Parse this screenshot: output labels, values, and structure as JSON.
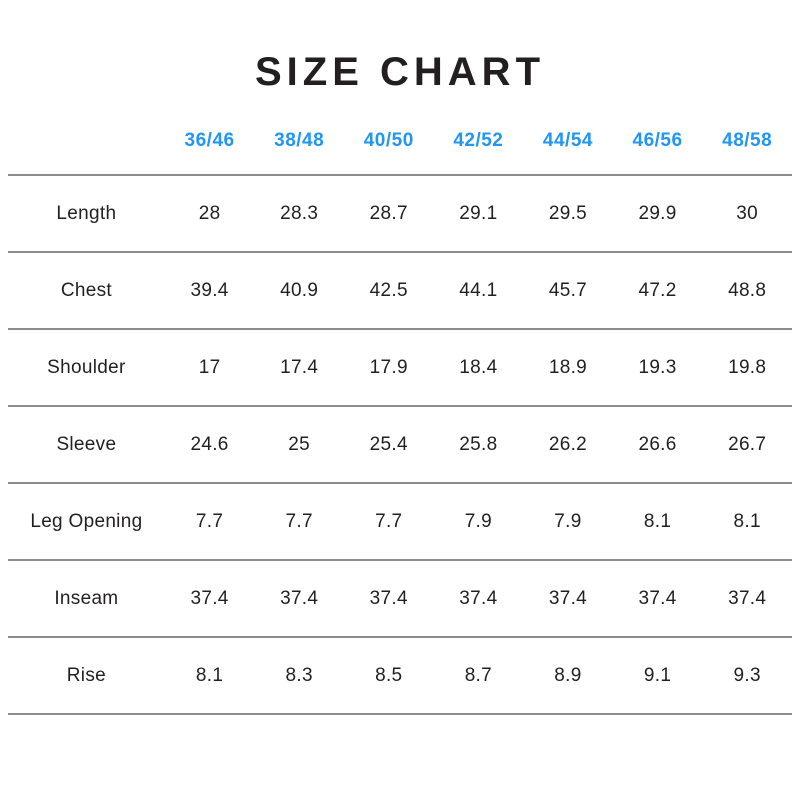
{
  "page": {
    "title": "SIZE CHART"
  },
  "colors": {
    "accent_blue": "#2196f3",
    "text_dark": "#231f20",
    "divider_gray": "#8c8c8c",
    "background": "#ffffff"
  },
  "table": {
    "size_headers": [
      "36/46",
      "38/48",
      "40/50",
      "42/52",
      "44/54",
      "46/56",
      "48/58"
    ],
    "rows": [
      {
        "label": "Length",
        "values": [
          "28",
          "28.3",
          "28.7",
          "29.1",
          "29.5",
          "29.9",
          "30"
        ]
      },
      {
        "label": "Chest",
        "values": [
          "39.4",
          "40.9",
          "42.5",
          "44.1",
          "45.7",
          "47.2",
          "48.8"
        ]
      },
      {
        "label": "Shoulder",
        "values": [
          "17",
          "17.4",
          "17.9",
          "18.4",
          "18.9",
          "19.3",
          "19.8"
        ]
      },
      {
        "label": "Sleeve",
        "values": [
          "24.6",
          "25",
          "25.4",
          "25.8",
          "26.2",
          "26.6",
          "26.7"
        ]
      },
      {
        "label": "Leg Opening",
        "values": [
          "7.7",
          "7.7",
          "7.7",
          "7.9",
          "7.9",
          "8.1",
          "8.1"
        ]
      },
      {
        "label": "Inseam",
        "values": [
          "37.4",
          "37.4",
          "37.4",
          "37.4",
          "37.4",
          "37.4",
          "37.4"
        ]
      },
      {
        "label": "Rise",
        "values": [
          "8.1",
          "8.3",
          "8.5",
          "8.7",
          "8.9",
          "9.1",
          "9.3"
        ]
      }
    ]
  }
}
